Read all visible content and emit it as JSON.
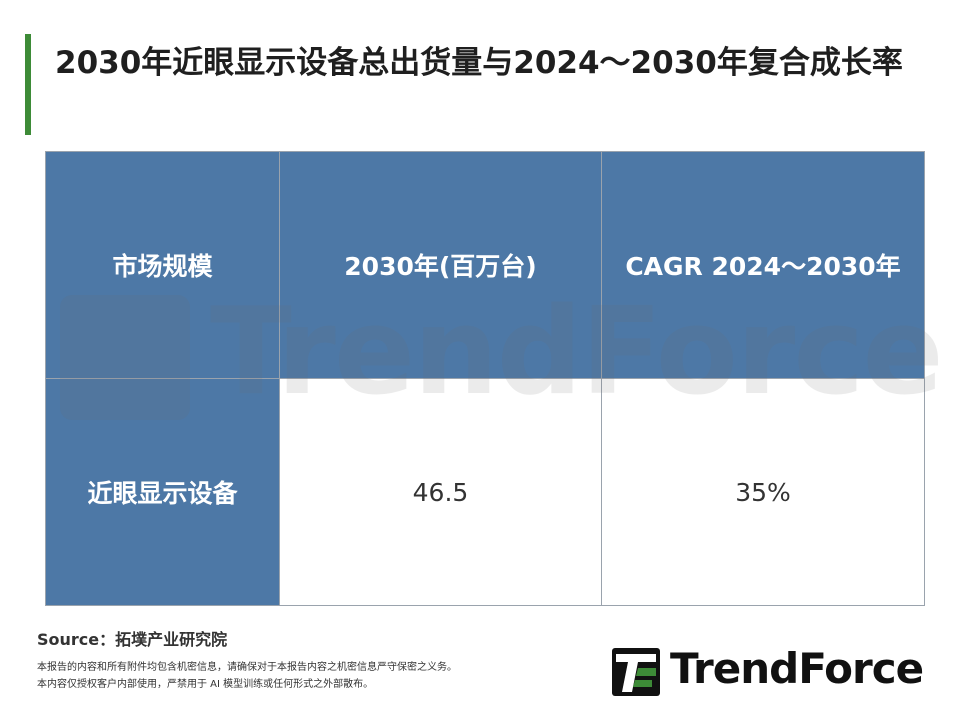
{
  "title": "2030年近眼显示设备总出货量与2024～2030年复合成长率",
  "chart_data": {
    "type": "table",
    "columns": [
      "市场规模",
      "2030年(百万台)",
      "CAGR 2024～2030年"
    ],
    "rows": [
      {
        "label": "近眼显示设备",
        "shipments": "46.5",
        "cagr": "35%"
      }
    ]
  },
  "watermark": "TrendForce",
  "source": "Source：拓墣产业研究院",
  "notes": [
    "本报告的内容和所有附件均包含机密信息，请确保对于本报告内容之机密信息严守保密之义务。",
    "本内容仅授权客户内部使用，严禁用于 AI 模型训练或任何形式之外部散布。"
  ],
  "logo": {
    "text": "TrendForce",
    "icon": "trendforce-logo-icon",
    "color": "#3d8b37"
  },
  "colors": {
    "header_bg": "#4d78a6",
    "accent_bar": "#3d8b37"
  }
}
